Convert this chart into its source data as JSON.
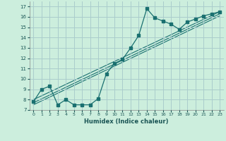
{
  "xlabel": "Humidex (Indice chaleur)",
  "bg_color": "#cceedd",
  "grid_color": "#aacccc",
  "line_color": "#1a7070",
  "xlim": [
    -0.5,
    23.5
  ],
  "ylim": [
    7,
    17.5
  ],
  "xticks": [
    0,
    1,
    2,
    3,
    4,
    5,
    6,
    7,
    8,
    9,
    10,
    11,
    12,
    13,
    14,
    15,
    16,
    17,
    18,
    19,
    20,
    21,
    22,
    23
  ],
  "yticks": [
    7,
    8,
    9,
    10,
    11,
    12,
    13,
    14,
    15,
    16,
    17
  ],
  "series1_x": [
    0,
    1,
    2,
    3,
    4,
    5,
    6,
    7,
    8,
    9,
    10,
    11,
    12,
    13,
    14,
    15,
    16,
    17,
    18,
    19,
    20,
    21,
    22,
    23
  ],
  "series1_y": [
    7.8,
    9.0,
    9.3,
    7.5,
    8.0,
    7.5,
    7.5,
    7.5,
    8.1,
    10.5,
    11.5,
    11.9,
    13.0,
    14.2,
    16.8,
    15.9,
    15.6,
    15.3,
    14.8,
    15.5,
    15.8,
    16.1,
    16.3,
    16.5
  ],
  "line2_x": [
    0,
    23
  ],
  "line2_y": [
    8.0,
    16.5
  ],
  "line3_x": [
    0,
    23
  ],
  "line3_y": [
    7.7,
    16.3
  ],
  "line4_x": [
    0,
    23
  ],
  "line4_y": [
    7.5,
    16.1
  ]
}
